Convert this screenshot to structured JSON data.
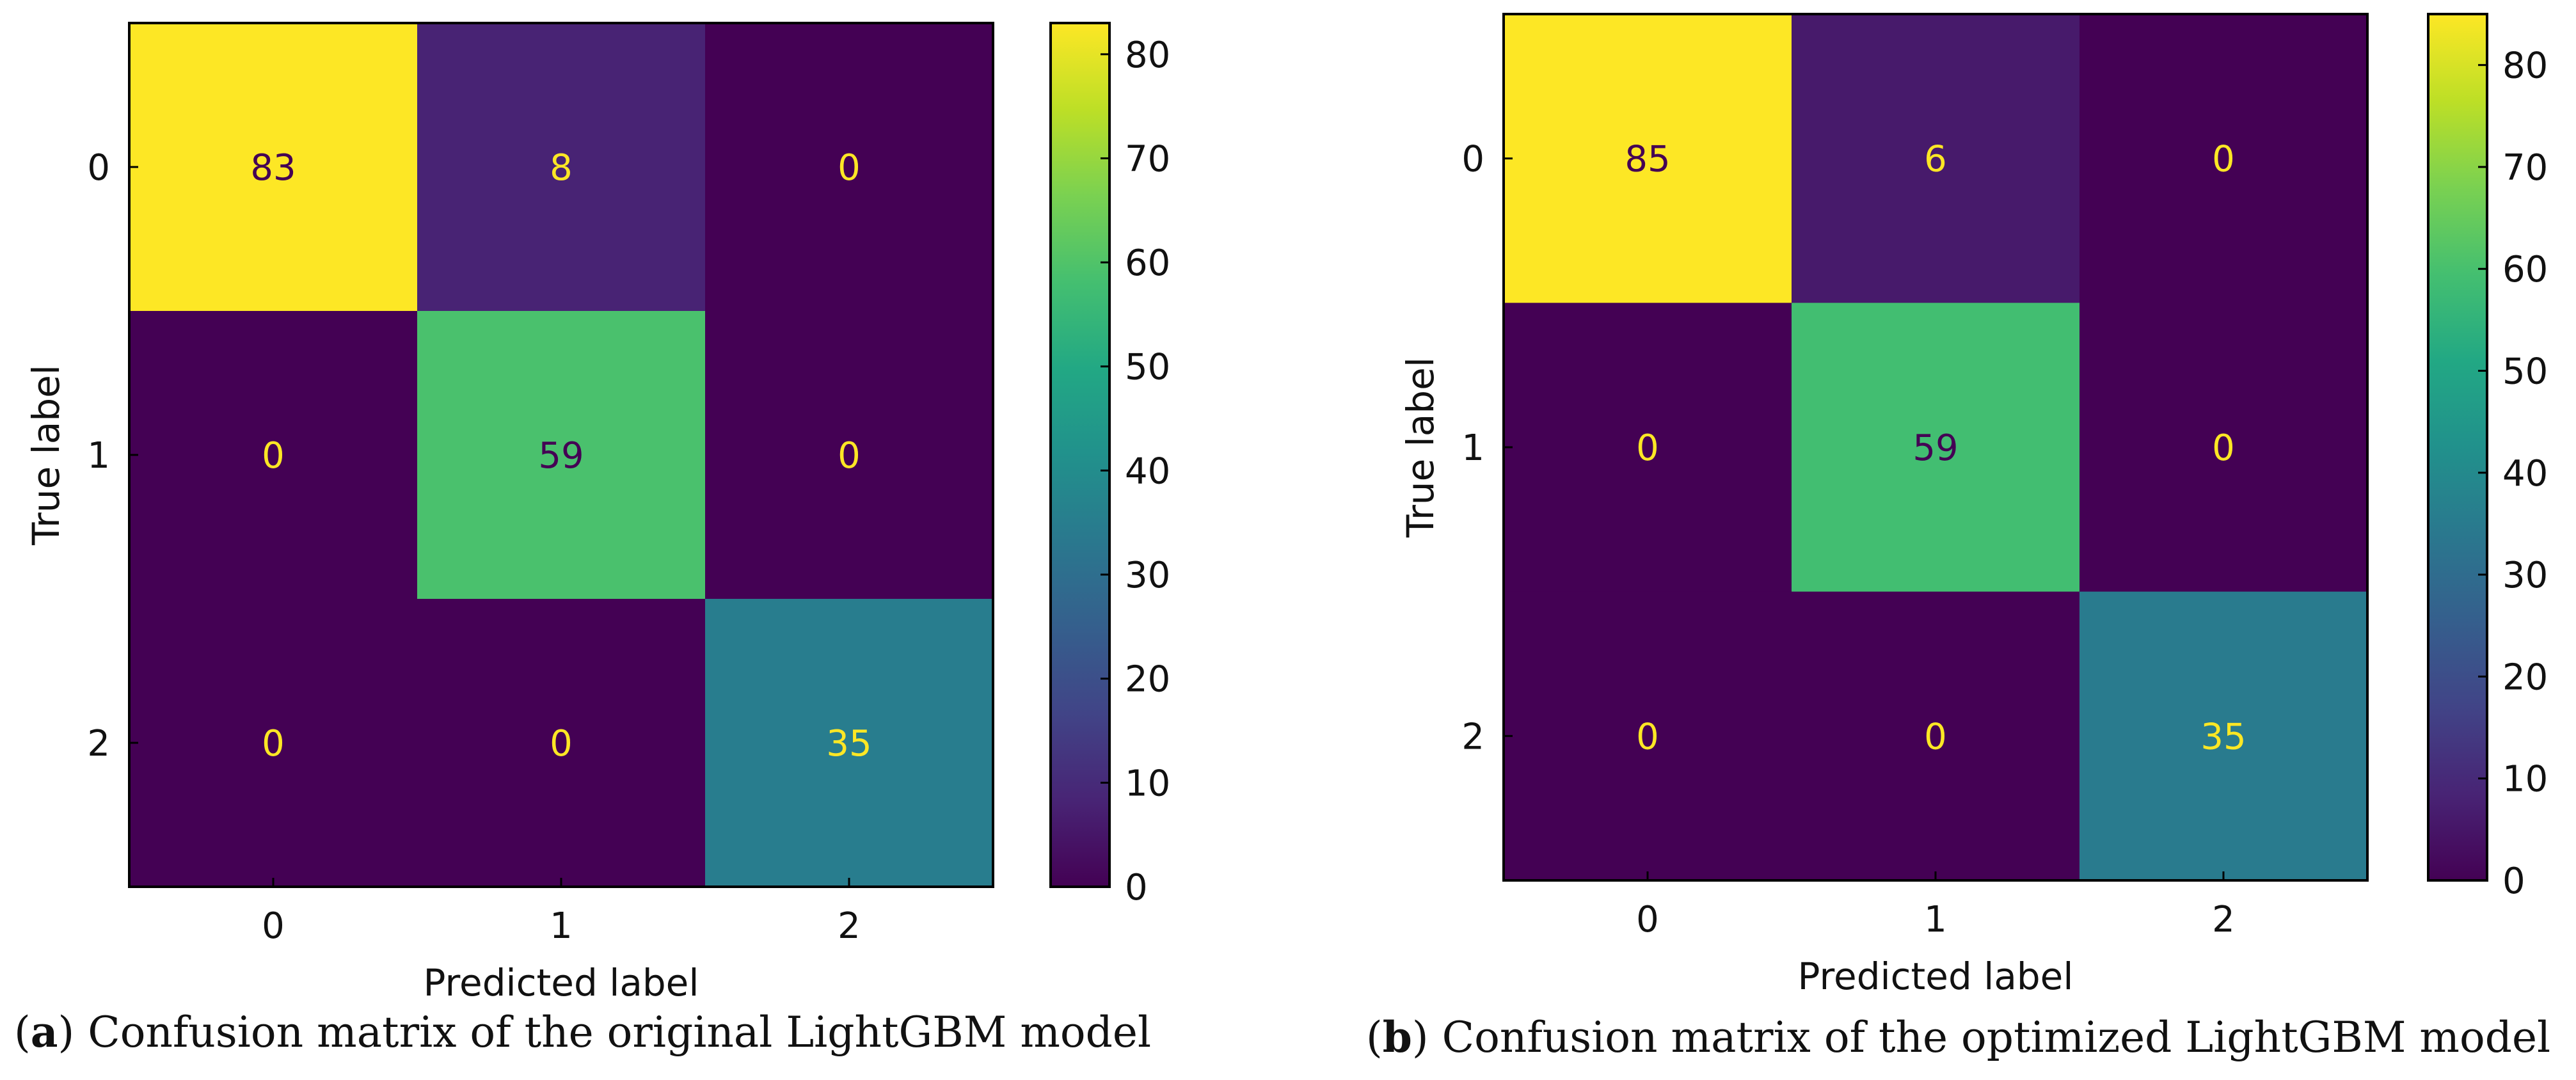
{
  "chart_data": [
    {
      "type": "heatmap",
      "panel": "a",
      "caption_letter": "a",
      "caption_text": " Confusion matrix of the original LightGBM model",
      "xlabel": "Predicted label",
      "ylabel": "True label",
      "x_categories": [
        "0",
        "1",
        "2"
      ],
      "y_categories": [
        "0",
        "1",
        "2"
      ],
      "matrix": [
        [
          83,
          8,
          0
        ],
        [
          0,
          59,
          0
        ],
        [
          0,
          0,
          35
        ]
      ],
      "colormap": "viridis",
      "colorbar_range": [
        0,
        83
      ],
      "colorbar_ticks": [
        0,
        10,
        20,
        30,
        40,
        50,
        60,
        70,
        80
      ]
    },
    {
      "type": "heatmap",
      "panel": "b",
      "caption_letter": "b",
      "caption_text": " Confusion matrix of the optimized LightGBM model",
      "xlabel": "Predicted label",
      "ylabel": "True label",
      "x_categories": [
        "0",
        "1",
        "2"
      ],
      "y_categories": [
        "0",
        "1",
        "2"
      ],
      "matrix": [
        [
          85,
          6,
          0
        ],
        [
          0,
          59,
          0
        ],
        [
          0,
          0,
          35
        ]
      ],
      "colormap": "viridis",
      "colorbar_range": [
        0,
        85
      ],
      "colorbar_ticks": [
        0,
        10,
        20,
        30,
        40,
        50,
        60,
        70,
        80
      ]
    }
  ]
}
